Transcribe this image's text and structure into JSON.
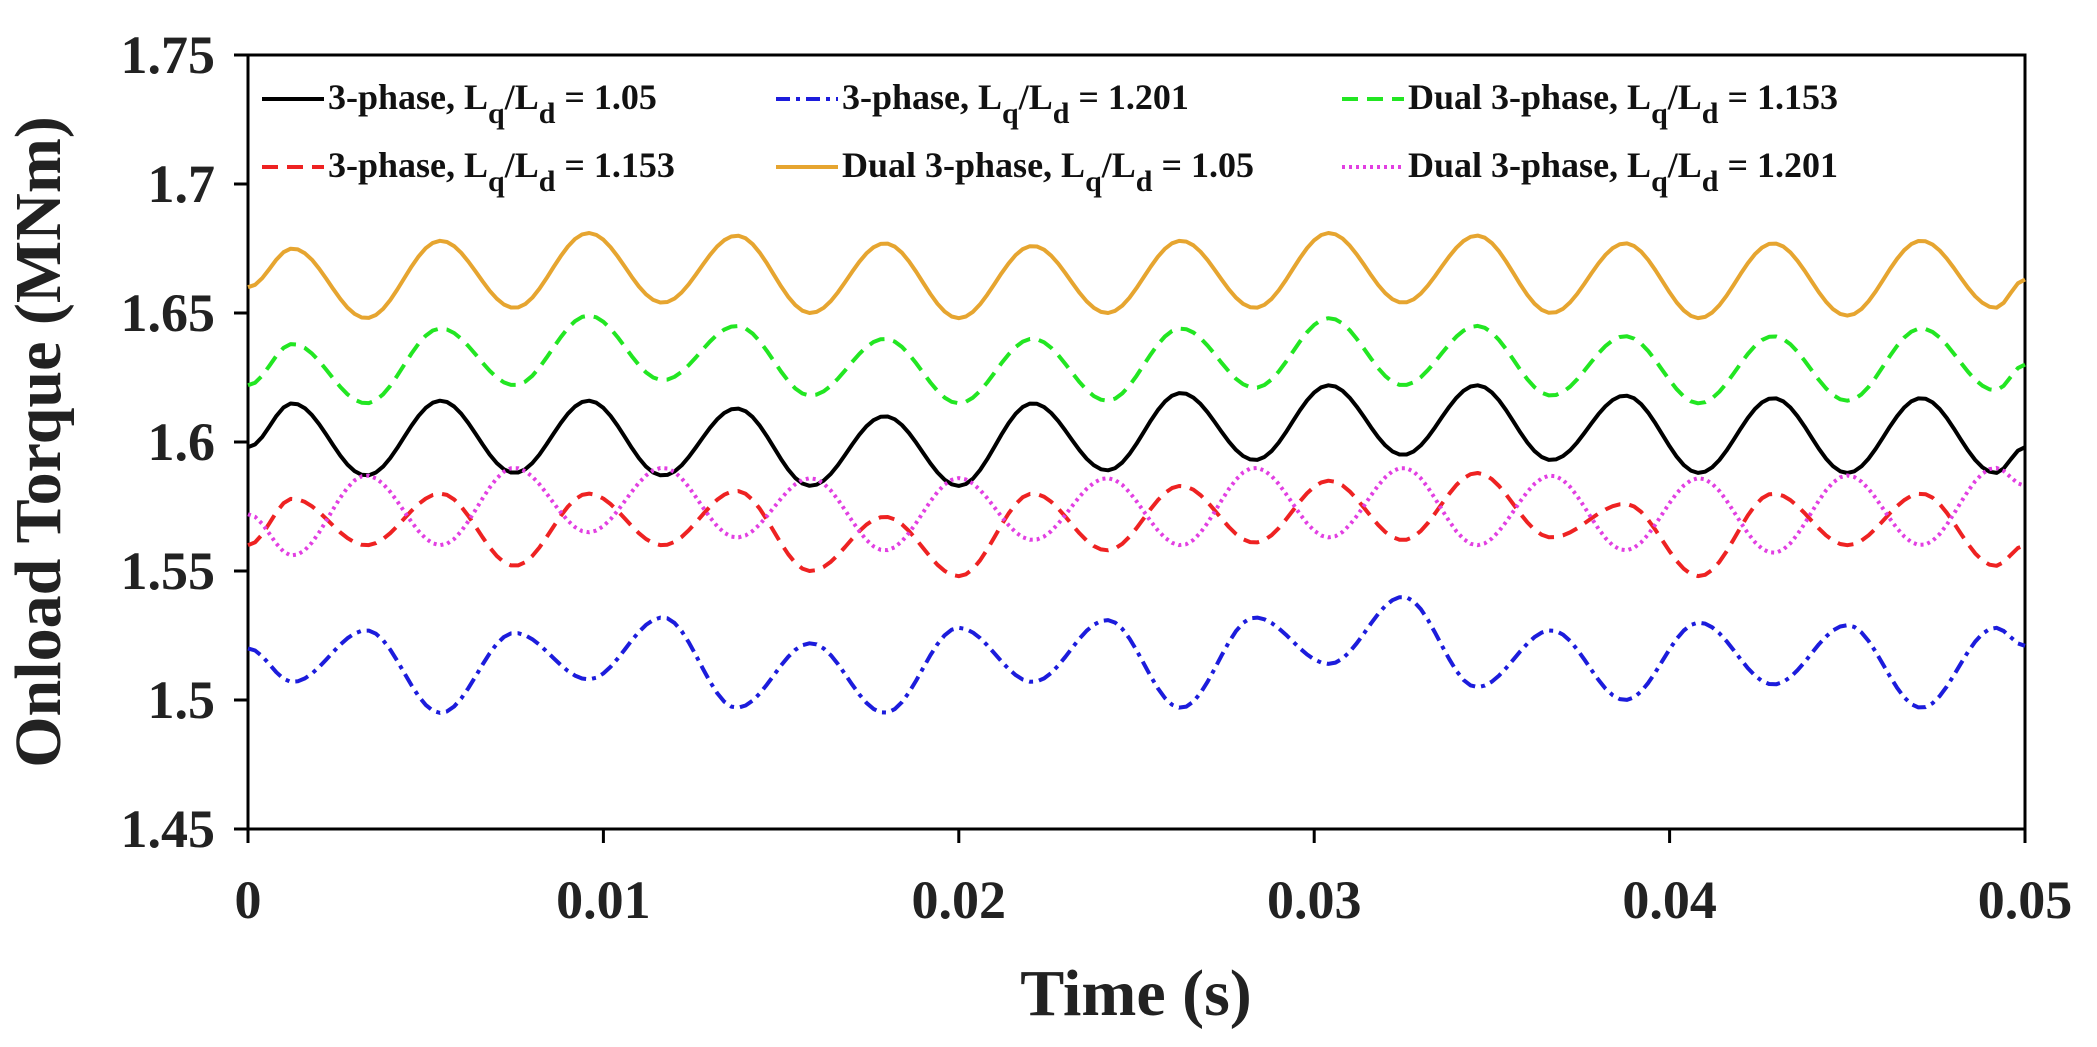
{
  "chart_data": {
    "type": "line",
    "title": "",
    "xlabel": "Time (s)",
    "ylabel": "Onload Torque (MNm)",
    "xlim": [
      0,
      0.05
    ],
    "ylim": [
      1.45,
      1.75
    ],
    "grid": false,
    "legend_position": "top",
    "x_ticks": [
      "0",
      "0.01",
      "0.02",
      "0.03",
      "0.04",
      "0.05"
    ],
    "x_tick_values": [
      0,
      0.01,
      0.02,
      0.03,
      0.04,
      0.05
    ],
    "y_ticks": [
      "1.45",
      "1.5",
      "1.55",
      "1.6",
      "1.65",
      "1.7",
      "1.75"
    ],
    "y_tick_values": [
      1.45,
      1.5,
      1.55,
      1.6,
      1.65,
      1.7,
      1.75
    ],
    "ripple_period_s": 0.00417,
    "sample_step_s": 0.0002,
    "series": [
      {
        "name": "3-phase, Lq/Ld = 1.05",
        "legend": {
          "pre": "3-phase, L",
          "sub1": "q",
          "mid": "/L",
          "sub2": "d",
          "post": " = 1.05"
        },
        "color": "#000000",
        "dash": "solid",
        "x": [
          0,
          0.00125,
          0.00333,
          0.00542,
          0.0075,
          0.00958,
          0.01167,
          0.01375,
          0.01583,
          0.01792,
          0.02,
          0.02208,
          0.02417,
          0.02625,
          0.02833,
          0.03042,
          0.0325,
          0.03458,
          0.03667,
          0.03875,
          0.04083,
          0.04292,
          0.045,
          0.04708,
          0.04917,
          0.05
        ],
        "values": [
          1.598,
          1.615,
          1.587,
          1.616,
          1.588,
          1.616,
          1.587,
          1.613,
          1.583,
          1.61,
          1.583,
          1.615,
          1.589,
          1.619,
          1.593,
          1.622,
          1.595,
          1.622,
          1.593,
          1.618,
          1.588,
          1.617,
          1.588,
          1.617,
          1.588,
          1.598
        ]
      },
      {
        "name": "3-phase, Lq/Ld = 1.201",
        "legend": {
          "pre": "3-phase, L",
          "sub1": "q",
          "mid": "/L",
          "sub2": "d",
          "post": " = 1.201"
        },
        "color": "#1c1cdc",
        "dash": "dashdot",
        "x": [
          0,
          0.00125,
          0.00333,
          0.00542,
          0.0075,
          0.00958,
          0.01167,
          0.01375,
          0.01583,
          0.01792,
          0.02,
          0.02208,
          0.02417,
          0.02625,
          0.02833,
          0.03042,
          0.0325,
          0.03458,
          0.03667,
          0.03875,
          0.04083,
          0.04292,
          0.045,
          0.04708,
          0.04917,
          0.05
        ],
        "values": [
          1.52,
          1.507,
          1.527,
          1.495,
          1.526,
          1.508,
          1.532,
          1.497,
          1.522,
          1.495,
          1.528,
          1.507,
          1.531,
          1.497,
          1.532,
          1.514,
          1.54,
          1.505,
          1.527,
          1.5,
          1.53,
          1.506,
          1.529,
          1.497,
          1.528,
          1.521
        ]
      },
      {
        "name": "Dual 3-phase, Lq/Ld = 1.153",
        "legend": {
          "pre": "Dual 3-phase, L",
          "sub1": "q",
          "mid": "/L",
          "sub2": "d",
          "post": " = 1.153"
        },
        "color": "#22e622",
        "dash": "dashed",
        "x": [
          0,
          0.00125,
          0.00333,
          0.00542,
          0.0075,
          0.00958,
          0.01167,
          0.01375,
          0.01583,
          0.01792,
          0.02,
          0.02208,
          0.02417,
          0.02625,
          0.02833,
          0.03042,
          0.0325,
          0.03458,
          0.03667,
          0.03875,
          0.04083,
          0.04292,
          0.045,
          0.04708,
          0.04917,
          0.05
        ],
        "values": [
          1.622,
          1.638,
          1.615,
          1.644,
          1.622,
          1.649,
          1.624,
          1.645,
          1.618,
          1.64,
          1.615,
          1.64,
          1.616,
          1.644,
          1.621,
          1.648,
          1.622,
          1.645,
          1.618,
          1.641,
          1.615,
          1.641,
          1.616,
          1.644,
          1.62,
          1.63
        ]
      },
      {
        "name": "3-phase, Lq/Ld = 1.153",
        "legend": {
          "pre": "3-phase, L",
          "sub1": "q",
          "mid": "/L",
          "sub2": "d",
          "post": " = 1.153"
        },
        "color": "#ee2222",
        "dash": "dashed",
        "x": [
          0,
          0.00125,
          0.00333,
          0.00542,
          0.0075,
          0.00958,
          0.01167,
          0.01375,
          0.01583,
          0.01792,
          0.02,
          0.02208,
          0.02417,
          0.02625,
          0.02833,
          0.03042,
          0.0325,
          0.03458,
          0.03667,
          0.03875,
          0.04083,
          0.04292,
          0.045,
          0.04708,
          0.04917,
          0.05
        ],
        "values": [
          1.56,
          1.578,
          1.56,
          1.58,
          1.552,
          1.58,
          1.56,
          1.581,
          1.55,
          1.571,
          1.548,
          1.58,
          1.558,
          1.583,
          1.561,
          1.585,
          1.562,
          1.588,
          1.563,
          1.576,
          1.548,
          1.58,
          1.56,
          1.58,
          1.552,
          1.56
        ]
      },
      {
        "name": "Dual 3-phase, Lq/Ld = 1.05",
        "legend": {
          "pre": "Dual 3-phase, L",
          "sub1": "q",
          "mid": "/L",
          "sub2": "d",
          "post": " = 1.05"
        },
        "color": "#e6a530",
        "dash": "solid",
        "x": [
          0,
          0.00125,
          0.00333,
          0.00542,
          0.0075,
          0.00958,
          0.01167,
          0.01375,
          0.01583,
          0.01792,
          0.02,
          0.02208,
          0.02417,
          0.02625,
          0.02833,
          0.03042,
          0.0325,
          0.03458,
          0.03667,
          0.03875,
          0.04083,
          0.04292,
          0.045,
          0.04708,
          0.04917,
          0.05
        ],
        "values": [
          1.66,
          1.675,
          1.648,
          1.678,
          1.652,
          1.681,
          1.654,
          1.68,
          1.65,
          1.677,
          1.648,
          1.676,
          1.65,
          1.678,
          1.652,
          1.681,
          1.654,
          1.68,
          1.65,
          1.677,
          1.648,
          1.677,
          1.649,
          1.678,
          1.652,
          1.663
        ]
      },
      {
        "name": "Dual 3-phase, Lq/Ld = 1.201",
        "legend": {
          "pre": "Dual 3-phase, L",
          "sub1": "q",
          "mid": "/L",
          "sub2": "d",
          "post": " = 1.201"
        },
        "color": "#e23fe2",
        "dash": "dotted",
        "x": [
          0,
          0.00125,
          0.00333,
          0.00542,
          0.0075,
          0.00958,
          0.01167,
          0.01375,
          0.01583,
          0.01792,
          0.02,
          0.02208,
          0.02417,
          0.02625,
          0.02833,
          0.03042,
          0.0325,
          0.03458,
          0.03667,
          0.03875,
          0.04083,
          0.04292,
          0.045,
          0.04708,
          0.04917,
          0.05
        ],
        "values": [
          1.572,
          1.556,
          1.587,
          1.56,
          1.59,
          1.565,
          1.59,
          1.563,
          1.586,
          1.558,
          1.586,
          1.562,
          1.586,
          1.56,
          1.59,
          1.563,
          1.59,
          1.56,
          1.587,
          1.558,
          1.586,
          1.557,
          1.587,
          1.56,
          1.59,
          1.583
        ]
      }
    ]
  }
}
